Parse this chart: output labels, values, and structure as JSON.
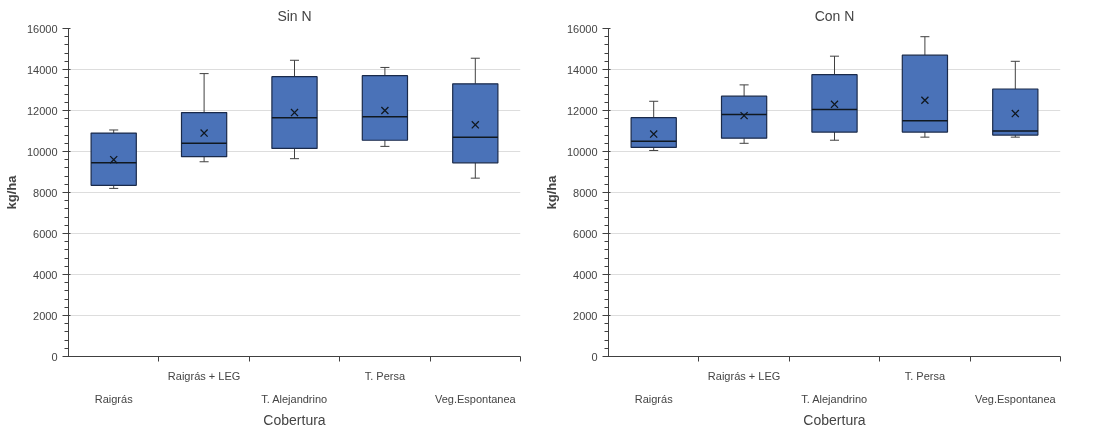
{
  "chart_data": [
    {
      "type": "box",
      "title": "Sin N",
      "xlabel": "Cobertura",
      "ylabel": "kg/ha",
      "categories": [
        "Raigrás",
        "Raigrás + LEG",
        "T. Alejandrino",
        "T. Persa",
        "Veg.Espontanea"
      ],
      "ylim": [
        0,
        16000
      ],
      "yticks": [
        0,
        2000,
        4000,
        6000,
        8000,
        10000,
        12000,
        14000,
        16000
      ],
      "grid": "y",
      "color": "#4a72b8",
      "boxes": [
        {
          "low": 8200,
          "q1": 8350,
          "median": 9450,
          "q3": 10900,
          "high": 11050,
          "mean": 9600
        },
        {
          "low": 9500,
          "q1": 9750,
          "median": 10400,
          "q3": 11900,
          "high": 13800,
          "mean": 10900
        },
        {
          "low": 9650,
          "q1": 10150,
          "median": 11650,
          "q3": 13650,
          "high": 14450,
          "mean": 11900
        },
        {
          "low": 10250,
          "q1": 10550,
          "median": 11700,
          "q3": 13700,
          "high": 14100,
          "mean": 12000
        },
        {
          "low": 8700,
          "q1": 9450,
          "median": 10700,
          "q3": 13300,
          "high": 14550,
          "mean": 11300
        }
      ]
    },
    {
      "type": "box",
      "title": "Con N",
      "xlabel": "Cobertura",
      "ylabel": "kg/ha",
      "categories": [
        "Raigrás",
        "Raigrás + LEG",
        "T. Alejandrino",
        "T. Persa",
        "Veg.Espontanea"
      ],
      "ylim": [
        0,
        16000
      ],
      "yticks": [
        0,
        2000,
        4000,
        6000,
        8000,
        10000,
        12000,
        14000,
        16000
      ],
      "grid": "y",
      "color": "#4a72b8",
      "boxes": [
        {
          "low": 10050,
          "q1": 10200,
          "median": 10500,
          "q3": 11650,
          "high": 12450,
          "mean": 10850
        },
        {
          "low": 10400,
          "q1": 10650,
          "median": 11800,
          "q3": 12700,
          "high": 13250,
          "mean": 11750
        },
        {
          "low": 10550,
          "q1": 10950,
          "median": 12050,
          "q3": 13750,
          "high": 14650,
          "mean": 12300
        },
        {
          "low": 10700,
          "q1": 10950,
          "median": 11500,
          "q3": 14700,
          "high": 15600,
          "mean": 12500
        },
        {
          "low": 10700,
          "q1": 10800,
          "median": 11000,
          "q3": 13050,
          "high": 14400,
          "mean": 11850
        }
      ]
    }
  ]
}
